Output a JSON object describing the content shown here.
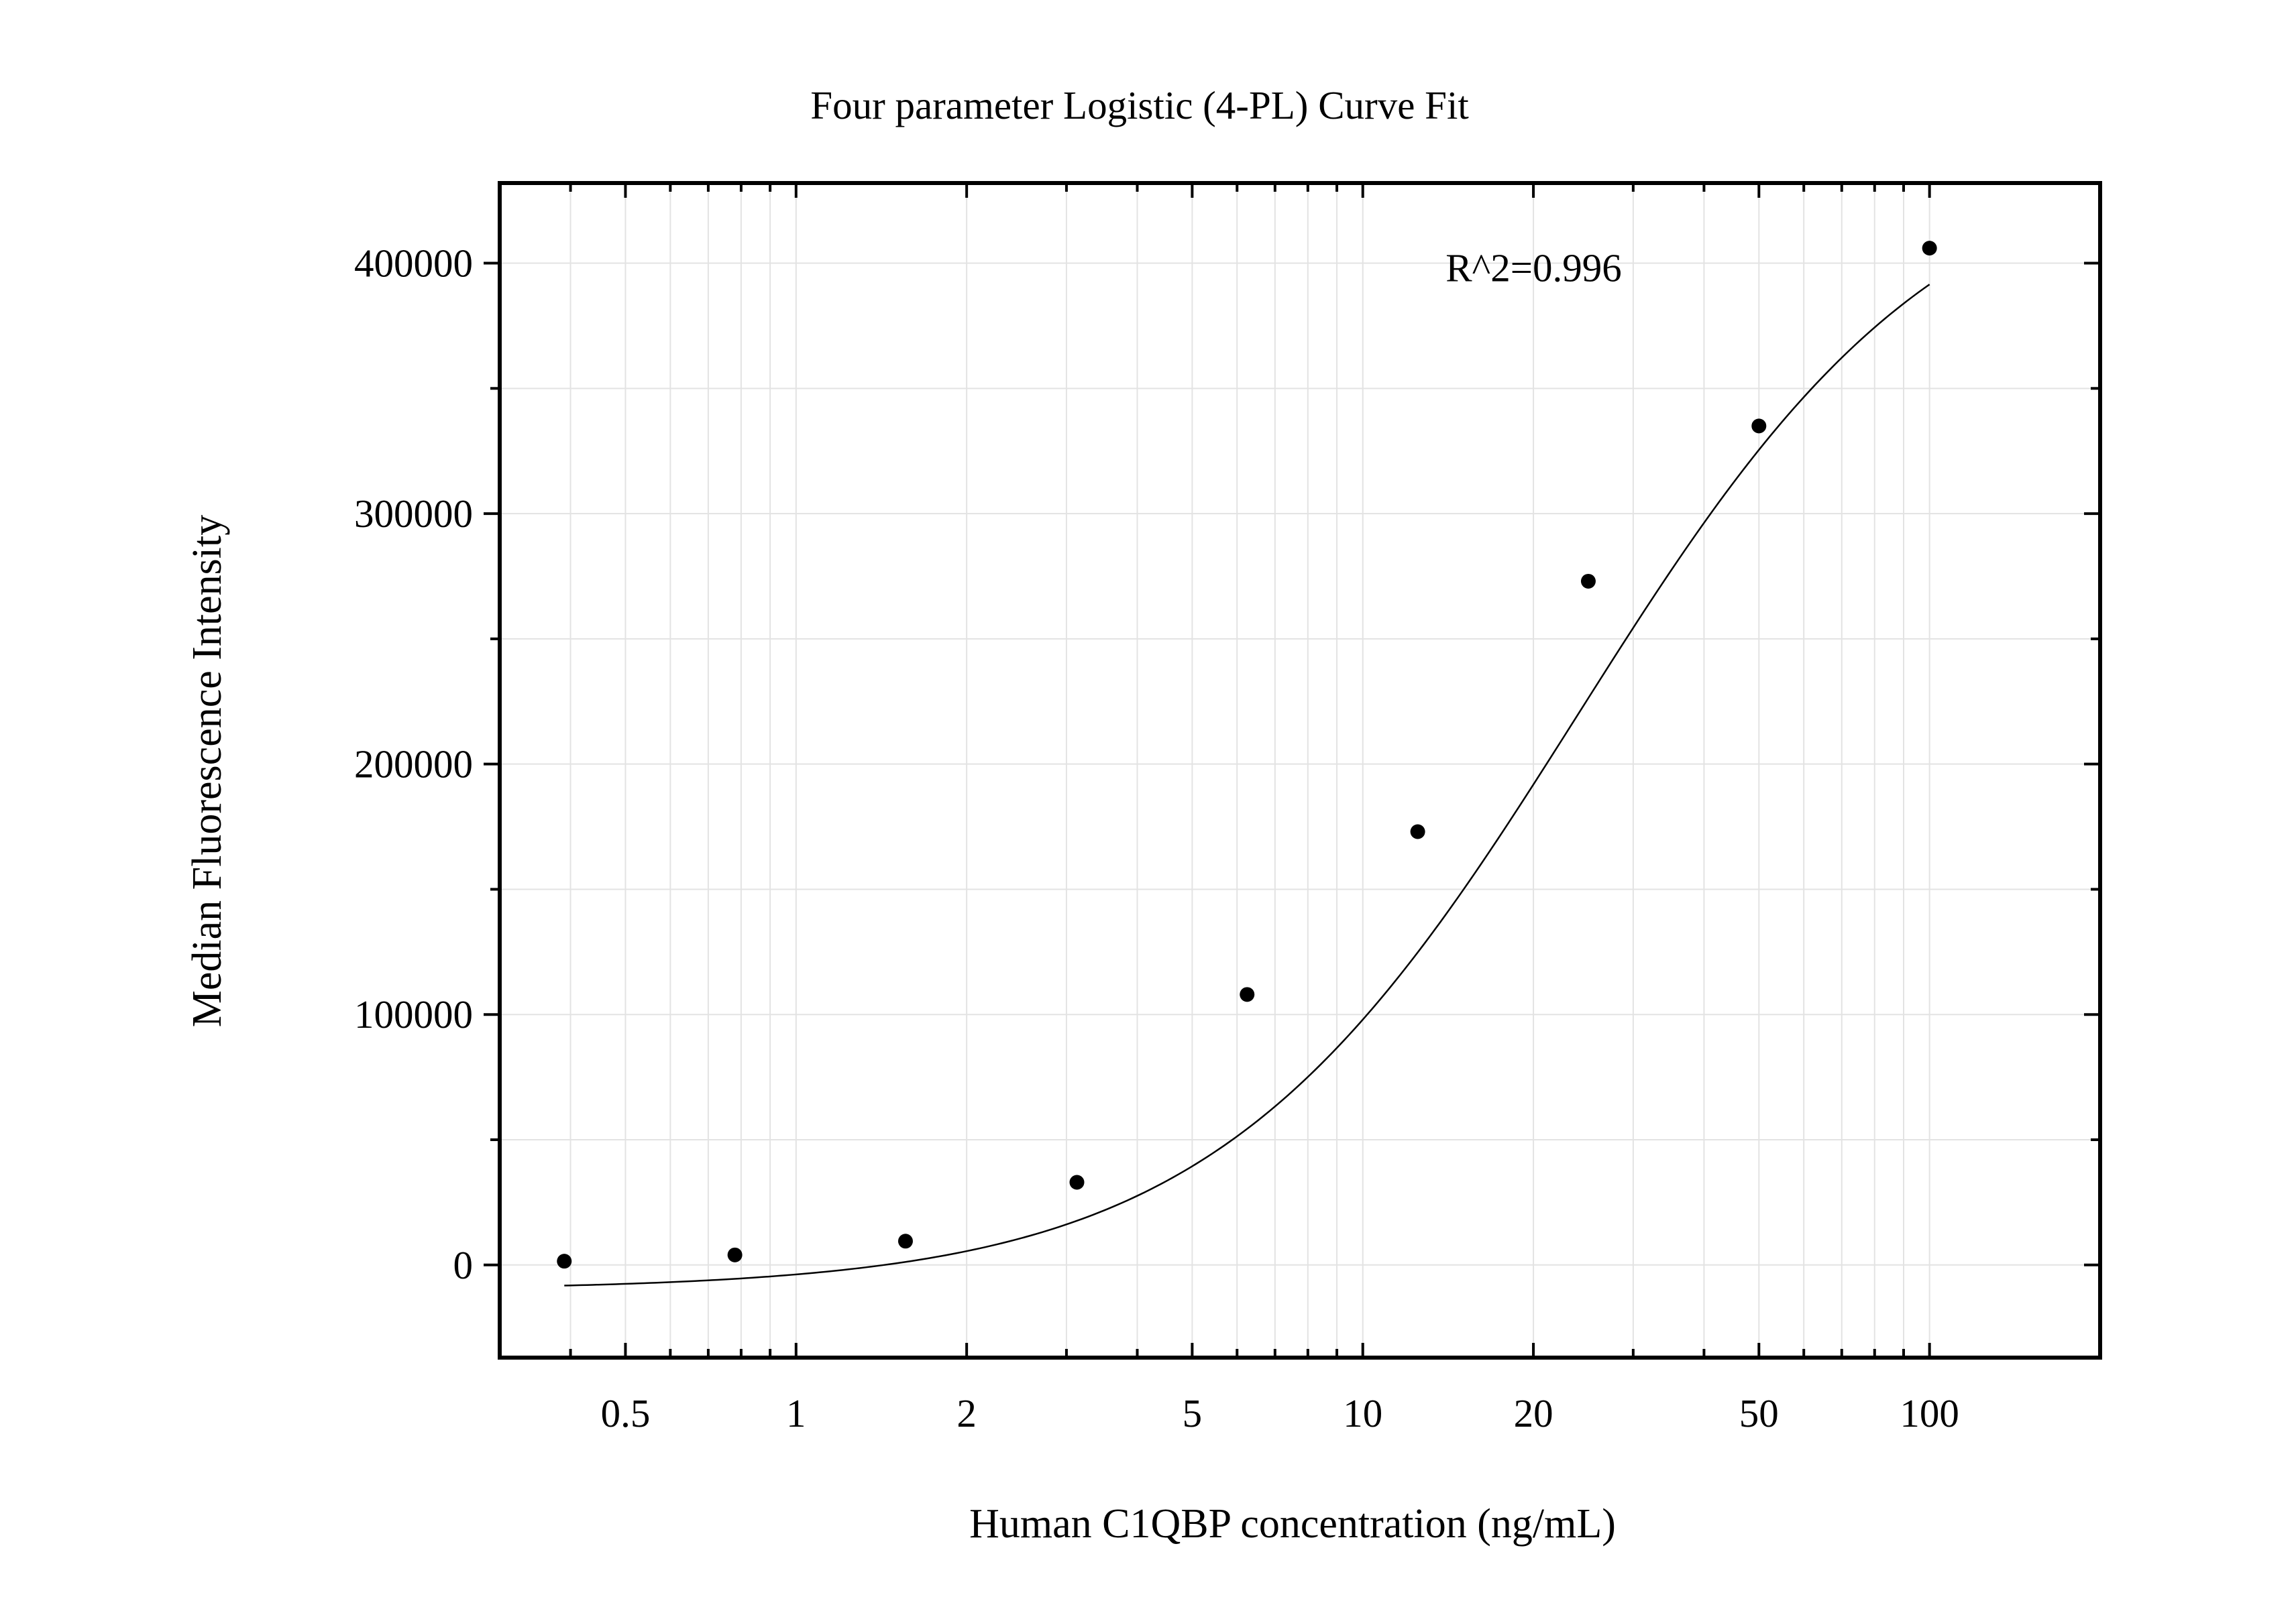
{
  "chart_data": {
    "type": "scatter",
    "title": "Four parameter Logistic (4-PL) Curve Fit",
    "xlabel": "Human C1QBP concentration (ng/mL)",
    "ylabel": "Median Fluorescence Intensity",
    "xscale": "log",
    "xlim": [
      0.3,
      200
    ],
    "ylim": [
      -37000,
      432000
    ],
    "grid": true,
    "legend": "none",
    "x_ticks": [
      {
        "value": 0.5,
        "label": "0.5"
      },
      {
        "value": 1,
        "label": "1"
      },
      {
        "value": 2,
        "label": "2"
      },
      {
        "value": 5,
        "label": "5"
      },
      {
        "value": 10,
        "label": "10"
      },
      {
        "value": 20,
        "label": "20"
      },
      {
        "value": 50,
        "label": "50"
      },
      {
        "value": 100,
        "label": "100"
      }
    ],
    "y_ticks": [
      {
        "value": 0,
        "label": "0"
      },
      {
        "value": 100000,
        "label": "100000"
      },
      {
        "value": 200000,
        "label": "200000"
      },
      {
        "value": 300000,
        "label": "300000"
      },
      {
        "value": 400000,
        "label": "400000"
      }
    ],
    "y_minor_ticks": [
      50000,
      150000,
      250000,
      350000
    ],
    "points": {
      "x": [
        0.39,
        0.78,
        1.56,
        3.13,
        6.25,
        12.5,
        25,
        50,
        100
      ],
      "y": [
        1500,
        4000,
        9500,
        33000,
        108000,
        173000,
        273000,
        335000,
        406000
      ]
    },
    "curve": {
      "type": "4PL",
      "x_range": [
        0.39,
        100
      ],
      "bottom": -10000,
      "top": 450000,
      "ec50": 24,
      "hill": 1.35
    },
    "annotations": [
      {
        "text": "R^2=0.996",
        "x": 14,
        "y": 400000
      }
    ],
    "colors": {
      "points": "#000000",
      "curve": "#000000",
      "grid": "#e3e3e3",
      "frame": "#000000"
    }
  }
}
